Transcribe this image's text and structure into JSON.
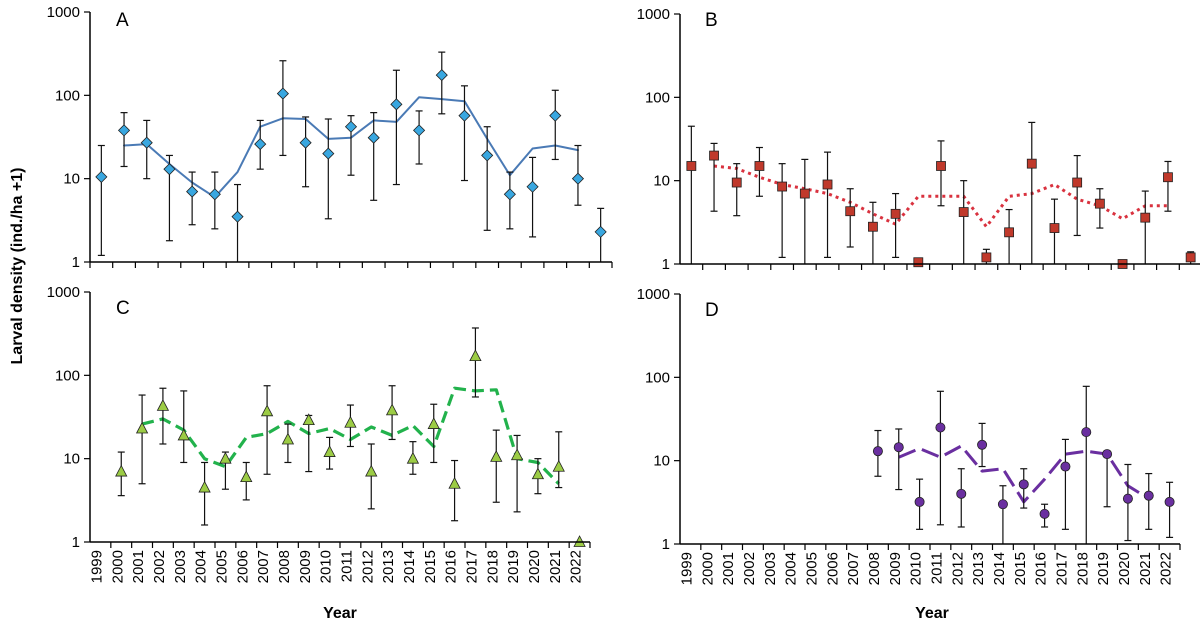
{
  "ylabel": "Larval density (ind./ha +1)",
  "xlabel": "Year",
  "colors": {
    "A": {
      "marker": "#39a7e0",
      "line": "#4a7ab5"
    },
    "B": {
      "marker": "#c0392b",
      "line": "#d9323f"
    },
    "C": {
      "marker": "#9ccc45",
      "line": "#22b24c"
    },
    "D": {
      "marker": "#6a2fa0",
      "line": "#6a2fa0"
    }
  },
  "chart_data": [
    {
      "panel": "A",
      "type": "scatter",
      "x_ticks": [
        "1999",
        "2000",
        "2001",
        "2002",
        "2003",
        "2004",
        "2005",
        "2006",
        "2007",
        "2008",
        "2009",
        "2010",
        "2011",
        "2012",
        "2013",
        "2014",
        "2015",
        "2016",
        "2017",
        "2018",
        "2019",
        "2020",
        "2021",
        "2022"
      ],
      "y_ticks": [
        "1",
        "10",
        "100",
        "1000"
      ],
      "y_scale": "log",
      "ylim": [
        1,
        1000
      ],
      "points": [
        {
          "x": 2000,
          "y": 10.5,
          "lo": 1.2,
          "hi": 25
        },
        {
          "x": 2001,
          "y": 38,
          "lo": 14,
          "hi": 62
        },
        {
          "x": 2002,
          "y": 27,
          "lo": 10,
          "hi": 50
        },
        {
          "x": 2003,
          "y": 13,
          "lo": 1.8,
          "hi": 19
        },
        {
          "x": 2004,
          "y": 7,
          "lo": 2.8,
          "hi": 12
        },
        {
          "x": 2005,
          "y": 6.5,
          "lo": 2.5,
          "hi": 12
        },
        {
          "x": 2006,
          "y": 3.5,
          "lo": 1,
          "hi": 8.5
        },
        {
          "x": 2007,
          "y": 26,
          "lo": 13,
          "hi": 50
        },
        {
          "x": 2008,
          "y": 105,
          "lo": 19,
          "hi": 260
        },
        {
          "x": 2009,
          "y": 27,
          "lo": 8,
          "hi": 55
        },
        {
          "x": 2010,
          "y": 20,
          "lo": 3.3,
          "hi": 52
        },
        {
          "x": 2011,
          "y": 42,
          "lo": 11,
          "hi": 57
        },
        {
          "x": 2012,
          "y": 31,
          "lo": 5.5,
          "hi": 62
        },
        {
          "x": 2013,
          "y": 78,
          "lo": 8.5,
          "hi": 200
        },
        {
          "x": 2014,
          "y": 38,
          "lo": 15,
          "hi": 65
        },
        {
          "x": 2015,
          "y": 175,
          "lo": 60,
          "hi": 330
        },
        {
          "x": 2016,
          "y": 57,
          "lo": 9.5,
          "hi": 130
        },
        {
          "x": 2017,
          "y": 19,
          "lo": 2.4,
          "hi": 42
        },
        {
          "x": 2018,
          "y": 6.5,
          "lo": 2.5,
          "hi": 12
        },
        {
          "x": 2019,
          "y": 8,
          "lo": 2,
          "hi": 18
        },
        {
          "x": 2020,
          "y": 57,
          "lo": 17,
          "hi": 115
        },
        {
          "x": 2021,
          "y": 10,
          "lo": 4.8,
          "hi": 25
        },
        {
          "x": 2022,
          "y": 2.3,
          "lo": 1,
          "hi": 4.4
        }
      ],
      "trend": [
        [
          2001,
          25
        ],
        [
          2002,
          26
        ],
        [
          2003,
          15
        ],
        [
          2004,
          9
        ],
        [
          2005,
          6
        ],
        [
          2006,
          12
        ],
        [
          2007,
          42
        ],
        [
          2008,
          53
        ],
        [
          2009,
          52
        ],
        [
          2010,
          30
        ],
        [
          2011,
          31
        ],
        [
          2012,
          50
        ],
        [
          2013,
          48
        ],
        [
          2014,
          95
        ],
        [
          2015,
          90
        ],
        [
          2016,
          85
        ],
        [
          2017,
          30
        ],
        [
          2018,
          11
        ],
        [
          2019,
          23
        ],
        [
          2020,
          25
        ],
        [
          2021,
          22
        ]
      ]
    },
    {
      "panel": "B",
      "type": "scatter",
      "x_ticks": [
        "2000",
        "2001",
        "2002",
        "2003",
        "2004",
        "2005",
        "2006",
        "2007",
        "2008",
        "2009",
        "2010",
        "2011",
        "2012",
        "2013",
        "2014",
        "2015",
        "2016",
        "2017",
        "2018",
        "2019",
        "2020",
        "2021",
        "2022"
      ],
      "y_ticks": [
        "1",
        "10",
        "100",
        "1000"
      ],
      "y_scale": "log",
      "ylim": [
        1,
        1000
      ],
      "points": [
        {
          "x": 2000,
          "y": 15,
          "lo": 1,
          "hi": 45
        },
        {
          "x": 2001,
          "y": 20,
          "lo": 4.3,
          "hi": 28
        },
        {
          "x": 2002,
          "y": 9.5,
          "lo": 3.8,
          "hi": 16
        },
        {
          "x": 2003,
          "y": 15,
          "lo": 6.5,
          "hi": 25
        },
        {
          "x": 2004,
          "y": 8.5,
          "lo": 1.2,
          "hi": 16
        },
        {
          "x": 2005,
          "y": 7,
          "lo": 1,
          "hi": 18
        },
        {
          "x": 2006,
          "y": 9,
          "lo": 1.2,
          "hi": 22
        },
        {
          "x": 2007,
          "y": 4.3,
          "lo": 1.6,
          "hi": 8
        },
        {
          "x": 2008,
          "y": 2.8,
          "lo": 1,
          "hi": 5.5
        },
        {
          "x": 2009,
          "y": 4,
          "lo": 1.2,
          "hi": 7
        },
        {
          "x": 2010,
          "y": 1.05,
          "lo": 1,
          "hi": 1.1
        },
        {
          "x": 2011,
          "y": 15,
          "lo": 5,
          "hi": 30
        },
        {
          "x": 2012,
          "y": 4.2,
          "lo": 1,
          "hi": 10
        },
        {
          "x": 2013,
          "y": 1.2,
          "lo": 1,
          "hi": 1.5
        },
        {
          "x": 2014,
          "y": 2.4,
          "lo": 1,
          "hi": 4.5
        },
        {
          "x": 2015,
          "y": 16,
          "lo": 1,
          "hi": 50
        },
        {
          "x": 2016,
          "y": 2.7,
          "lo": 1,
          "hi": 6
        },
        {
          "x": 2017,
          "y": 9.5,
          "lo": 2.2,
          "hi": 20
        },
        {
          "x": 2018,
          "y": 5.3,
          "lo": 2.7,
          "hi": 8
        },
        {
          "x": 2019,
          "y": 1.0,
          "lo": 1,
          "hi": 1
        },
        {
          "x": 2020,
          "y": 3.6,
          "lo": 1,
          "hi": 7.5
        },
        {
          "x": 2021,
          "y": 11,
          "lo": 4.3,
          "hi": 17
        },
        {
          "x": 2022,
          "y": 1.2,
          "lo": 1,
          "hi": 1.4
        }
      ],
      "trend": [
        [
          2001,
          15
        ],
        [
          2002,
          14
        ],
        [
          2003,
          11
        ],
        [
          2004,
          9
        ],
        [
          2005,
          8
        ],
        [
          2006,
          7
        ],
        [
          2007,
          5.5
        ],
        [
          2008,
          4
        ],
        [
          2009,
          3
        ],
        [
          2010,
          6.5
        ],
        [
          2011,
          6.5
        ],
        [
          2012,
          6.5
        ],
        [
          2013,
          2.8
        ],
        [
          2014,
          6.5
        ],
        [
          2015,
          7
        ],
        [
          2016,
          9
        ],
        [
          2017,
          6
        ],
        [
          2018,
          5
        ],
        [
          2019,
          3.5
        ],
        [
          2020,
          5
        ],
        [
          2021,
          5
        ]
      ]
    },
    {
      "panel": "C",
      "type": "scatter",
      "x_ticks": [
        "1999",
        "2000",
        "2001",
        "2002",
        "2003",
        "2004",
        "2005",
        "2006",
        "2007",
        "2008",
        "2009",
        "2010",
        "2011",
        "2012",
        "2013",
        "2014",
        "2015",
        "2016",
        "2017",
        "2018",
        "2019",
        "2020",
        "2021",
        "2022"
      ],
      "y_ticks": [
        "1",
        "10",
        "100",
        "1000"
      ],
      "y_scale": "log",
      "ylim": [
        1,
        1000
      ],
      "points": [
        {
          "x": 2000,
          "y": 7,
          "lo": 3.6,
          "hi": 12
        },
        {
          "x": 2001,
          "y": 23,
          "lo": 5,
          "hi": 58
        },
        {
          "x": 2002,
          "y": 43,
          "lo": 15,
          "hi": 70
        },
        {
          "x": 2003,
          "y": 19,
          "lo": 9,
          "hi": 65
        },
        {
          "x": 2004,
          "y": 4.5,
          "lo": 1.6,
          "hi": 9
        },
        {
          "x": 2005,
          "y": 10,
          "lo": 4.3,
          "hi": 12
        },
        {
          "x": 2006,
          "y": 6,
          "lo": 3.2,
          "hi": 9
        },
        {
          "x": 2007,
          "y": 37,
          "lo": 6.5,
          "hi": 75
        },
        {
          "x": 2008,
          "y": 17,
          "lo": 9,
          "hi": 26
        },
        {
          "x": 2009,
          "y": 29,
          "lo": 7,
          "hi": 33
        },
        {
          "x": 2010,
          "y": 12,
          "lo": 7.5,
          "hi": 18
        },
        {
          "x": 2011,
          "y": 27,
          "lo": 14,
          "hi": 44
        },
        {
          "x": 2012,
          "y": 7,
          "lo": 2.5,
          "hi": 15
        },
        {
          "x": 2013,
          "y": 38,
          "lo": 17,
          "hi": 75
        },
        {
          "x": 2014,
          "y": 10,
          "lo": 6.5,
          "hi": 16
        },
        {
          "x": 2015,
          "y": 26,
          "lo": 9,
          "hi": 45
        },
        {
          "x": 2016,
          "y": 5,
          "lo": 1.8,
          "hi": 9.5
        },
        {
          "x": 2017,
          "y": 170,
          "lo": 55,
          "hi": 370
        },
        {
          "x": 2018,
          "y": 10.5,
          "lo": 3,
          "hi": 22
        },
        {
          "x": 2019,
          "y": 11,
          "lo": 2.3,
          "hi": 19
        },
        {
          "x": 2020,
          "y": 6.5,
          "lo": 3.8,
          "hi": 10
        },
        {
          "x": 2021,
          "y": 8,
          "lo": 4.5,
          "hi": 21
        },
        {
          "x": 2022,
          "y": 1,
          "lo": 1,
          "hi": 1
        }
      ],
      "trend": [
        [
          2001,
          26
        ],
        [
          2002,
          30
        ],
        [
          2003,
          22
        ],
        [
          2004,
          10
        ],
        [
          2005,
          8
        ],
        [
          2006,
          18
        ],
        [
          2007,
          20
        ],
        [
          2008,
          28
        ],
        [
          2009,
          20
        ],
        [
          2010,
          23
        ],
        [
          2011,
          17
        ],
        [
          2012,
          24
        ],
        [
          2013,
          19
        ],
        [
          2014,
          25
        ],
        [
          2015,
          14
        ],
        [
          2016,
          70
        ],
        [
          2017,
          65
        ],
        [
          2018,
          67
        ],
        [
          2019,
          10
        ],
        [
          2020,
          9
        ],
        [
          2021,
          5
        ]
      ]
    },
    {
      "panel": "D",
      "type": "scatter",
      "x_ticks": [
        "1999",
        "2000",
        "2001",
        "2002",
        "2003",
        "2004",
        "2005",
        "2006",
        "2007",
        "2008",
        "2009",
        "2010",
        "2011",
        "2012",
        "2013",
        "2014",
        "2015",
        "2016",
        "2017",
        "2018",
        "2019",
        "2020",
        "2021",
        "2022"
      ],
      "y_ticks": [
        "1",
        "10",
        "100",
        "1000"
      ],
      "y_scale": "log",
      "ylim": [
        1,
        1000
      ],
      "points": [
        {
          "x": 2008,
          "y": 13,
          "lo": 6.5,
          "hi": 23
        },
        {
          "x": 2009,
          "y": 14.5,
          "lo": 4.5,
          "hi": 24
        },
        {
          "x": 2010,
          "y": 3.2,
          "lo": 1.5,
          "hi": 6
        },
        {
          "x": 2011,
          "y": 25,
          "lo": 1.7,
          "hi": 68
        },
        {
          "x": 2012,
          "y": 4,
          "lo": 1.6,
          "hi": 8
        },
        {
          "x": 2013,
          "y": 15.5,
          "lo": 8.5,
          "hi": 28
        },
        {
          "x": 2014,
          "y": 3,
          "lo": 1,
          "hi": 5
        },
        {
          "x": 2015,
          "y": 5.2,
          "lo": 2.7,
          "hi": 8
        },
        {
          "x": 2016,
          "y": 2.3,
          "lo": 1.6,
          "hi": 3
        },
        {
          "x": 2017,
          "y": 8.5,
          "lo": 1.5,
          "hi": 18
        },
        {
          "x": 2018,
          "y": 22,
          "lo": 1,
          "hi": 78
        },
        {
          "x": 2019,
          "y": 12,
          "lo": 2.8,
          "hi": 12
        },
        {
          "x": 2020,
          "y": 3.5,
          "lo": 1.1,
          "hi": 9
        },
        {
          "x": 2021,
          "y": 3.8,
          "lo": 1.5,
          "hi": 7
        },
        {
          "x": 2022,
          "y": 3.2,
          "lo": 1.2,
          "hi": 5.5
        }
      ],
      "trend": [
        [
          2009,
          11
        ],
        [
          2010,
          14
        ],
        [
          2011,
          11
        ],
        [
          2012,
          15
        ],
        [
          2013,
          7.5
        ],
        [
          2014,
          8
        ],
        [
          2015,
          3.2
        ],
        [
          2016,
          6
        ],
        [
          2017,
          12
        ],
        [
          2018,
          13
        ],
        [
          2019,
          12
        ],
        [
          2020,
          5
        ],
        [
          2021,
          3.5
        ]
      ]
    }
  ]
}
